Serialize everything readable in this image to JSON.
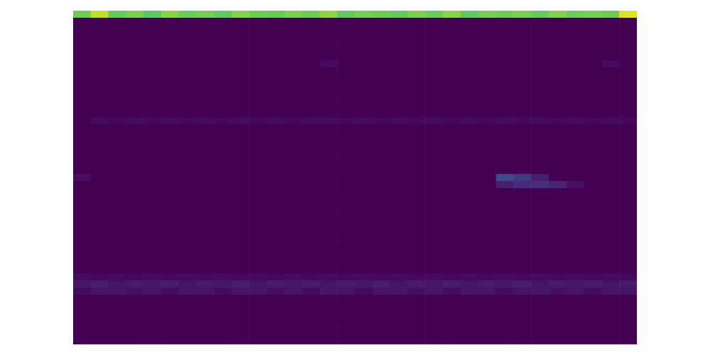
{
  "chart_data": {
    "type": "heatmap",
    "tick_labels": false,
    "zlim": [
      0,
      1
    ],
    "cells": [
      [
        0.78,
        0.9,
        0.76,
        0.8,
        0.74,
        0.82,
        0.77,
        0.79,
        0.75,
        0.81,
        0.78,
        0.76,
        0.8,
        0.77,
        0.83,
        0.75,
        0.79,
        0.78,
        0.76,
        0.8,
        0.77,
        0.82,
        0.75,
        0.79,
        0.78,
        0.8,
        0.76,
        0.81,
        0.77,
        0.79,
        0.78,
        0.95
      ],
      [
        0,
        0,
        0,
        0,
        0,
        0,
        0,
        0,
        0,
        0,
        0,
        0,
        0,
        0,
        0,
        0,
        0,
        0,
        0,
        0,
        0,
        0,
        0,
        0,
        0,
        0,
        0,
        0,
        0,
        0,
        0,
        0
      ],
      [
        0,
        0,
        0,
        0,
        0,
        0,
        0,
        0,
        0,
        0,
        0,
        0,
        0,
        0,
        0,
        0,
        0,
        0,
        0,
        0,
        0,
        0,
        0,
        0,
        0,
        0,
        0,
        0,
        0,
        0,
        0,
        0
      ],
      [
        0,
        0,
        0,
        0,
        0,
        0,
        0,
        0,
        0,
        0,
        0,
        0,
        0,
        0,
        0,
        0,
        0,
        0,
        0,
        0,
        0,
        0,
        0,
        0,
        0,
        0,
        0,
        0,
        0,
        0,
        0,
        0
      ],
      [
        0,
        0,
        0,
        0,
        0,
        0,
        0,
        0,
        0,
        0,
        0,
        0,
        0,
        0,
        0,
        0,
        0,
        0,
        0,
        0,
        0,
        0,
        0,
        0,
        0,
        0,
        0,
        0,
        0,
        0,
        0,
        0
      ],
      [
        0,
        0,
        0,
        0,
        0,
        0,
        0,
        0,
        0,
        0,
        0,
        0,
        0,
        0,
        0,
        0,
        0,
        0,
        0,
        0,
        0,
        0,
        0,
        0,
        0,
        0,
        0,
        0,
        0,
        0,
        0,
        0
      ],
      [
        0,
        0,
        0,
        0,
        0,
        0,
        0,
        0,
        0,
        0,
        0,
        0,
        0,
        0,
        0,
        0,
        0,
        0,
        0,
        0,
        0,
        0,
        0,
        0,
        0,
        0,
        0,
        0,
        0,
        0,
        0,
        0
      ],
      [
        0,
        0,
        0,
        0,
        0,
        0,
        0,
        0,
        0,
        0,
        0,
        0,
        0,
        0,
        0.03,
        0,
        0,
        0,
        0,
        0,
        0,
        0,
        0,
        0,
        0,
        0,
        0,
        0,
        0,
        0,
        0.03,
        0
      ],
      [
        0,
        0,
        0,
        0,
        0,
        0,
        0,
        0,
        0,
        0,
        0,
        0,
        0,
        0,
        0,
        0,
        0,
        0,
        0,
        0,
        0,
        0,
        0,
        0,
        0,
        0,
        0,
        0,
        0,
        0,
        0,
        0
      ],
      [
        0,
        0,
        0,
        0,
        0,
        0,
        0,
        0,
        0,
        0,
        0,
        0,
        0,
        0,
        0,
        0,
        0,
        0,
        0,
        0,
        0,
        0,
        0,
        0,
        0,
        0,
        0,
        0,
        0,
        0,
        0,
        0
      ],
      [
        0,
        0,
        0,
        0,
        0,
        0,
        0,
        0,
        0,
        0,
        0,
        0,
        0,
        0,
        0,
        0,
        0,
        0,
        0,
        0,
        0,
        0,
        0,
        0,
        0,
        0,
        0,
        0,
        0,
        0,
        0,
        0
      ],
      [
        0,
        0,
        0,
        0,
        0,
        0,
        0,
        0,
        0,
        0,
        0,
        0,
        0,
        0,
        0,
        0,
        0,
        0,
        0,
        0,
        0,
        0,
        0,
        0,
        0,
        0,
        0,
        0,
        0,
        0,
        0,
        0
      ],
      [
        0,
        0,
        0,
        0,
        0,
        0,
        0,
        0,
        0,
        0,
        0,
        0,
        0,
        0,
        0,
        0,
        0,
        0,
        0,
        0,
        0,
        0,
        0,
        0,
        0,
        0,
        0,
        0,
        0,
        0,
        0,
        0
      ],
      [
        0,
        0,
        0,
        0,
        0,
        0,
        0,
        0,
        0,
        0,
        0,
        0,
        0,
        0,
        0,
        0,
        0,
        0,
        0,
        0,
        0,
        0,
        0,
        0,
        0,
        0,
        0,
        0,
        0,
        0,
        0,
        0
      ],
      [
        0,
        0,
        0,
        0,
        0,
        0,
        0,
        0,
        0,
        0,
        0,
        0,
        0,
        0,
        0,
        0,
        0,
        0,
        0,
        0,
        0,
        0,
        0,
        0,
        0,
        0,
        0,
        0,
        0,
        0,
        0,
        0
      ],
      [
        0,
        0.03,
        0.02,
        0.03,
        0.02,
        0.03,
        0.02,
        0.03,
        0.02,
        0.03,
        0.02,
        0.03,
        0.02,
        0.03,
        0.03,
        0.02,
        0.03,
        0.02,
        0.03,
        0.02,
        0.03,
        0.02,
        0.03,
        0.02,
        0.03,
        0.02,
        0.03,
        0.02,
        0.03,
        0.02,
        0.03,
        0.02
      ],
      [
        0,
        0,
        0,
        0,
        0,
        0,
        0,
        0,
        0,
        0,
        0,
        0,
        0,
        0,
        0,
        0,
        0,
        0,
        0,
        0,
        0,
        0,
        0,
        0,
        0,
        0,
        0,
        0,
        0,
        0,
        0,
        0
      ],
      [
        0,
        0,
        0,
        0,
        0,
        0,
        0,
        0,
        0,
        0,
        0,
        0,
        0,
        0,
        0,
        0,
        0,
        0,
        0,
        0,
        0,
        0,
        0,
        0,
        0,
        0,
        0,
        0,
        0,
        0,
        0,
        0
      ],
      [
        0,
        0,
        0,
        0,
        0,
        0,
        0,
        0,
        0,
        0,
        0,
        0,
        0,
        0,
        0,
        0,
        0,
        0,
        0,
        0,
        0,
        0,
        0,
        0,
        0,
        0,
        0,
        0,
        0,
        0,
        0,
        0
      ],
      [
        0,
        0,
        0,
        0,
        0,
        0,
        0,
        0,
        0,
        0,
        0,
        0,
        0,
        0,
        0,
        0,
        0,
        0,
        0,
        0,
        0,
        0,
        0,
        0,
        0,
        0,
        0,
        0,
        0,
        0,
        0,
        0
      ],
      [
        0,
        0,
        0,
        0,
        0,
        0,
        0,
        0,
        0,
        0,
        0,
        0,
        0,
        0,
        0,
        0,
        0,
        0,
        0,
        0,
        0,
        0,
        0,
        0,
        0,
        0,
        0,
        0,
        0,
        0,
        0,
        0
      ],
      [
        0,
        0,
        0,
        0,
        0,
        0,
        0,
        0,
        0,
        0,
        0,
        0,
        0,
        0,
        0,
        0,
        0,
        0,
        0,
        0,
        0,
        0,
        0,
        0,
        0,
        0,
        0,
        0,
        0,
        0,
        0,
        0
      ],
      [
        0,
        0,
        0,
        0,
        0,
        0,
        0,
        0,
        0,
        0,
        0,
        0,
        0,
        0,
        0,
        0,
        0,
        0,
        0,
        0,
        0,
        0,
        0,
        0,
        0,
        0,
        0,
        0,
        0,
        0,
        0,
        0
      ],
      [
        0.04,
        0,
        0,
        0,
        0,
        0,
        0,
        0,
        0,
        0,
        0,
        0,
        0,
        0,
        0,
        0,
        0,
        0,
        0,
        0,
        0,
        0,
        0,
        0,
        0.22,
        0.16,
        0.08,
        0,
        0,
        0,
        0,
        0
      ],
      [
        0,
        0,
        0,
        0,
        0,
        0,
        0,
        0,
        0,
        0,
        0,
        0,
        0,
        0,
        0,
        0,
        0,
        0,
        0,
        0,
        0,
        0,
        0,
        0,
        0.08,
        0.12,
        0.13,
        0.1,
        0.04,
        0,
        0,
        0
      ],
      [
        0,
        0,
        0,
        0,
        0,
        0,
        0,
        0,
        0,
        0,
        0,
        0,
        0,
        0,
        0,
        0,
        0,
        0,
        0,
        0,
        0,
        0,
        0,
        0,
        0,
        0,
        0,
        0,
        0,
        0,
        0,
        0
      ],
      [
        0,
        0,
        0,
        0,
        0,
        0,
        0,
        0,
        0,
        0,
        0,
        0,
        0,
        0,
        0,
        0,
        0,
        0,
        0,
        0,
        0,
        0,
        0,
        0,
        0,
        0,
        0,
        0,
        0,
        0,
        0,
        0
      ],
      [
        0,
        0,
        0,
        0,
        0,
        0,
        0,
        0,
        0,
        0,
        0,
        0,
        0,
        0,
        0,
        0,
        0,
        0,
        0,
        0,
        0,
        0,
        0,
        0,
        0,
        0,
        0,
        0,
        0,
        0,
        0,
        0
      ],
      [
        0,
        0,
        0,
        0,
        0,
        0,
        0,
        0,
        0,
        0,
        0,
        0,
        0,
        0,
        0,
        0,
        0,
        0,
        0,
        0,
        0,
        0,
        0,
        0,
        0,
        0,
        0,
        0,
        0,
        0,
        0,
        0
      ],
      [
        0,
        0,
        0,
        0,
        0,
        0,
        0,
        0,
        0,
        0,
        0,
        0,
        0,
        0,
        0,
        0,
        0,
        0,
        0,
        0,
        0,
        0,
        0,
        0,
        0,
        0,
        0,
        0,
        0,
        0,
        0,
        0
      ],
      [
        0,
        0,
        0,
        0,
        0,
        0,
        0,
        0,
        0,
        0,
        0,
        0,
        0,
        0,
        0,
        0,
        0,
        0,
        0,
        0,
        0,
        0,
        0,
        0,
        0,
        0,
        0,
        0,
        0,
        0,
        0,
        0
      ],
      [
        0,
        0,
        0,
        0,
        0,
        0,
        0,
        0,
        0,
        0,
        0,
        0,
        0,
        0,
        0,
        0,
        0,
        0,
        0,
        0,
        0,
        0,
        0,
        0,
        0,
        0,
        0,
        0,
        0,
        0,
        0,
        0
      ],
      [
        0,
        0,
        0,
        0,
        0,
        0,
        0,
        0,
        0,
        0,
        0,
        0,
        0,
        0,
        0,
        0,
        0,
        0,
        0,
        0,
        0,
        0,
        0,
        0,
        0,
        0,
        0,
        0,
        0,
        0,
        0,
        0
      ],
      [
        0,
        0,
        0,
        0,
        0,
        0,
        0,
        0,
        0,
        0,
        0,
        0,
        0,
        0,
        0,
        0,
        0,
        0,
        0,
        0,
        0,
        0,
        0,
        0,
        0,
        0,
        0,
        0,
        0,
        0,
        0,
        0
      ],
      [
        0,
        0,
        0,
        0,
        0,
        0,
        0,
        0,
        0,
        0,
        0,
        0,
        0,
        0,
        0,
        0,
        0,
        0,
        0,
        0,
        0,
        0,
        0,
        0,
        0,
        0,
        0,
        0,
        0,
        0,
        0,
        0
      ],
      [
        0,
        0,
        0,
        0,
        0,
        0,
        0,
        0,
        0,
        0,
        0,
        0,
        0,
        0,
        0,
        0,
        0,
        0,
        0,
        0,
        0,
        0,
        0,
        0,
        0,
        0,
        0,
        0,
        0,
        0,
        0,
        0
      ],
      [
        0,
        0,
        0,
        0,
        0,
        0,
        0,
        0,
        0,
        0,
        0,
        0,
        0,
        0,
        0,
        0,
        0,
        0,
        0,
        0,
        0,
        0,
        0,
        0,
        0,
        0,
        0,
        0,
        0,
        0,
        0,
        0
      ],
      [
        0.03,
        0.02,
        0.03,
        0.02,
        0.03,
        0.02,
        0.03,
        0.02,
        0.03,
        0.02,
        0.03,
        0.02,
        0.03,
        0.02,
        0.03,
        0.02,
        0.03,
        0.02,
        0.03,
        0.02,
        0.03,
        0.02,
        0.03,
        0.02,
        0.03,
        0.02,
        0.03,
        0.02,
        0.03,
        0.02,
        0.03,
        0.02
      ],
      [
        0.06,
        0.08,
        0.05,
        0.07,
        0.06,
        0.08,
        0.05,
        0.07,
        0.06,
        0.08,
        0.05,
        0.07,
        0.06,
        0.08,
        0.05,
        0.07,
        0.06,
        0.08,
        0.05,
        0.07,
        0.06,
        0.08,
        0.05,
        0.07,
        0.06,
        0.08,
        0.05,
        0.07,
        0.06,
        0.08,
        0.05,
        0.07
      ],
      [
        0.03,
        0.05,
        0.06,
        0.04,
        0.05,
        0.03,
        0.06,
        0.05,
        0.03,
        0.05,
        0.06,
        0.04,
        0.05,
        0.03,
        0.06,
        0.05,
        0.03,
        0.05,
        0.06,
        0.04,
        0.05,
        0.03,
        0.06,
        0.05,
        0.03,
        0.05,
        0.06,
        0.04,
        0.05,
        0.03,
        0.06,
        0.05
      ],
      [
        0,
        0,
        0,
        0,
        0,
        0,
        0,
        0,
        0,
        0,
        0,
        0,
        0,
        0,
        0,
        0,
        0,
        0,
        0,
        0,
        0,
        0,
        0,
        0,
        0,
        0,
        0,
        0,
        0,
        0,
        0,
        0
      ],
      [
        0,
        0,
        0,
        0,
        0,
        0,
        0,
        0,
        0,
        0,
        0,
        0,
        0,
        0,
        0,
        0,
        0,
        0,
        0,
        0,
        0,
        0,
        0,
        0,
        0,
        0,
        0,
        0,
        0,
        0,
        0,
        0
      ],
      [
        0,
        0,
        0,
        0,
        0,
        0,
        0,
        0,
        0,
        0,
        0,
        0,
        0,
        0,
        0,
        0,
        0,
        0,
        0,
        0,
        0,
        0,
        0,
        0,
        0,
        0,
        0,
        0,
        0,
        0,
        0,
        0
      ],
      [
        0,
        0,
        0,
        0,
        0,
        0,
        0,
        0,
        0,
        0,
        0,
        0,
        0,
        0,
        0,
        0,
        0,
        0,
        0,
        0,
        0,
        0,
        0,
        0,
        0,
        0,
        0,
        0,
        0,
        0,
        0,
        0
      ],
      [
        0,
        0,
        0,
        0,
        0,
        0,
        0,
        0,
        0,
        0,
        0,
        0,
        0,
        0,
        0,
        0,
        0,
        0,
        0,
        0,
        0,
        0,
        0,
        0,
        0,
        0,
        0,
        0,
        0,
        0,
        0,
        0
      ],
      [
        0,
        0,
        0,
        0,
        0,
        0,
        0,
        0,
        0,
        0,
        0,
        0,
        0,
        0,
        0,
        0,
        0,
        0,
        0,
        0,
        0,
        0,
        0,
        0,
        0,
        0,
        0,
        0,
        0,
        0,
        0,
        0
      ],
      [
        0,
        0,
        0,
        0,
        0,
        0,
        0,
        0,
        0,
        0,
        0,
        0,
        0,
        0,
        0,
        0,
        0,
        0,
        0,
        0,
        0,
        0,
        0,
        0,
        0,
        0,
        0,
        0,
        0,
        0,
        0,
        0
      ]
    ]
  }
}
